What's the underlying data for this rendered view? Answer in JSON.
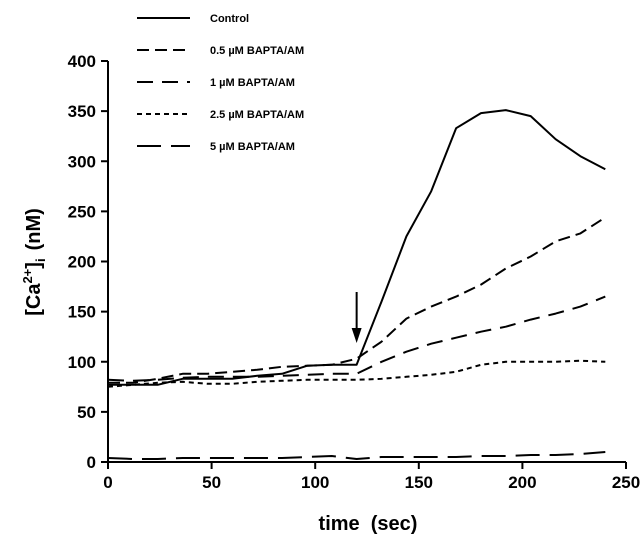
{
  "chart_data": {
    "type": "line",
    "xlabel": "time  (sec)",
    "ylabel_main": "[Ca",
    "ylabel_sup": "2+",
    "ylabel_close": "]",
    "ylabel_sub": "i",
    "ylabel_unit": "(nM)",
    "xlim": [
      0,
      250
    ],
    "ylim": [
      0,
      400
    ],
    "xticks": [
      0,
      50,
      100,
      150,
      200,
      250
    ],
    "yticks": [
      0,
      50,
      100,
      150,
      200,
      250,
      300,
      350,
      400
    ],
    "grid": false,
    "legend": "top-left",
    "arrow_at_x": 120,
    "series": [
      {
        "name": "Control",
        "dash": "solid",
        "x": [
          0,
          12,
          24,
          36,
          48,
          60,
          72,
          84,
          96,
          108,
          120,
          132,
          144,
          156,
          168,
          180,
          192,
          204,
          216,
          228,
          240
        ],
        "y": [
          77,
          77,
          77,
          83,
          83,
          83,
          86,
          88,
          96,
          97,
          97,
          160,
          225,
          270,
          333,
          348,
          351,
          345,
          322,
          305,
          292
        ]
      },
      {
        "name": "0.5 µM BAPTA/AM",
        "dash": "dash-medium",
        "x": [
          0,
          12,
          24,
          36,
          48,
          60,
          72,
          84,
          96,
          108,
          120,
          132,
          144,
          156,
          168,
          180,
          192,
          204,
          216,
          228,
          240
        ],
        "y": [
          79,
          79,
          83,
          88,
          88,
          90,
          92,
          95,
          96,
          97,
          103,
          120,
          143,
          155,
          165,
          177,
          193,
          205,
          220,
          228,
          244
        ]
      },
      {
        "name": "1 µM BAPTA/AM",
        "dash": "dash-long",
        "x": [
          0,
          12,
          24,
          36,
          48,
          60,
          72,
          84,
          96,
          108,
          120,
          132,
          144,
          156,
          168,
          180,
          192,
          204,
          216,
          228,
          240
        ],
        "y": [
          82,
          81,
          82,
          84,
          85,
          85,
          85,
          86,
          87,
          88,
          88,
          100,
          110,
          118,
          124,
          130,
          135,
          142,
          148,
          155,
          165
        ]
      },
      {
        "name": "2.5 µM BAPTA/AM",
        "dash": "dotted",
        "x": [
          0,
          12,
          24,
          36,
          48,
          60,
          72,
          84,
          96,
          108,
          120,
          132,
          144,
          156,
          168,
          180,
          192,
          204,
          216,
          228,
          240
        ],
        "y": [
          75,
          77,
          79,
          80,
          78,
          78,
          80,
          81,
          82,
          82,
          82,
          83,
          85,
          87,
          90,
          97,
          100,
          100,
          100,
          101,
          100
        ]
      },
      {
        "name": "5 µM BAPTA/AM",
        "dash": "dash-extra-long",
        "x": [
          0,
          12,
          24,
          36,
          48,
          60,
          72,
          84,
          96,
          108,
          120,
          132,
          144,
          156,
          168,
          180,
          192,
          204,
          216,
          228,
          240
        ],
        "y": [
          4,
          3,
          3,
          4,
          4,
          4,
          4,
          4,
          5,
          6,
          3,
          5,
          5,
          5,
          5,
          6,
          6,
          7,
          7,
          8,
          10
        ]
      }
    ]
  }
}
